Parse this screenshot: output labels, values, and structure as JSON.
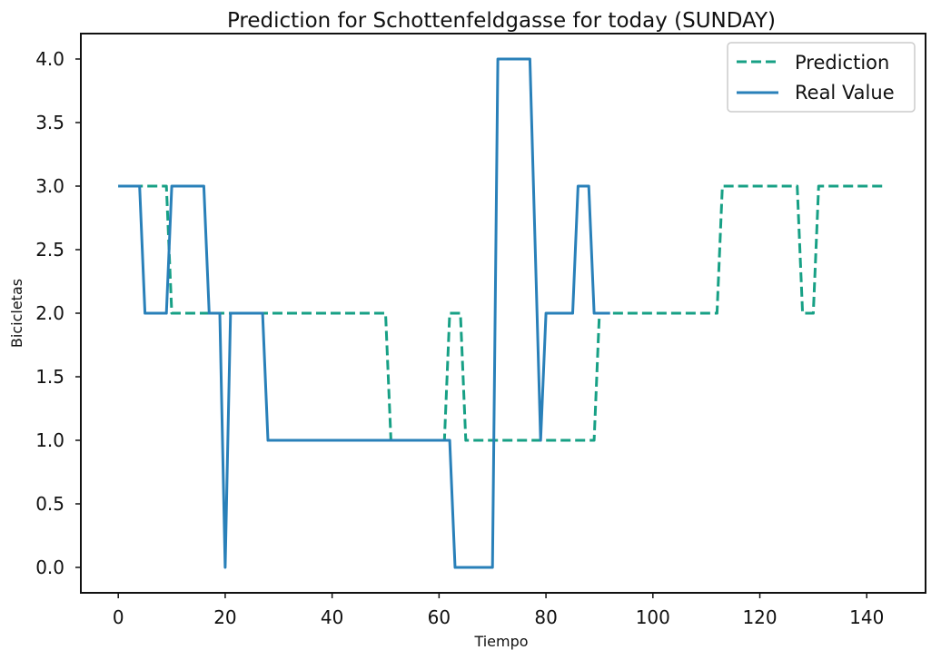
{
  "chart_data": {
    "type": "line",
    "title": "Prediction for Schottenfeldgasse for today (SUNDAY)",
    "xlabel": "Tiempo",
    "ylabel": "Bicicletas",
    "xlim": [
      -7,
      151
    ],
    "ylim": [
      -0.2,
      4.2
    ],
    "xticks": [
      0,
      20,
      40,
      60,
      80,
      100,
      120,
      140
    ],
    "xtick_labels": [
      "0",
      "20",
      "40",
      "60",
      "80",
      "100",
      "120",
      "140"
    ],
    "yticks": [
      0,
      0.5,
      1,
      1.5,
      2,
      2.5,
      3,
      3.5,
      4
    ],
    "ytick_labels": [
      "0.0",
      "0.5",
      "1.0",
      "1.5",
      "2.0",
      "2.5",
      "3.0",
      "3.5",
      "4.0"
    ],
    "grid": false,
    "legend_position": "top-right",
    "series": [
      {
        "name": "Prediction",
        "color": "#17a085",
        "style": "dashed",
        "x": [
          0,
          9,
          10,
          50,
          51,
          61,
          62,
          64,
          65,
          89,
          90,
          112,
          113,
          127,
          128,
          130,
          131,
          143
        ],
        "y": [
          3,
          3,
          2,
          2,
          1,
          1,
          2,
          2,
          1,
          1,
          2,
          2,
          3,
          3,
          2,
          2,
          3,
          3
        ]
      },
      {
        "name": "Real Value",
        "color": "#2980b9",
        "style": "solid",
        "x": [
          0,
          4,
          5,
          9,
          10,
          16,
          17,
          19,
          20,
          21,
          27,
          28,
          62,
          63,
          70,
          71,
          77,
          79,
          80,
          85,
          86,
          88,
          89,
          92
        ],
        "y": [
          3,
          3,
          2,
          2,
          3,
          3,
          2,
          2,
          0,
          2,
          2,
          1,
          1,
          0,
          0,
          4,
          4,
          1,
          2,
          2,
          3,
          3,
          2,
          2
        ]
      }
    ]
  }
}
